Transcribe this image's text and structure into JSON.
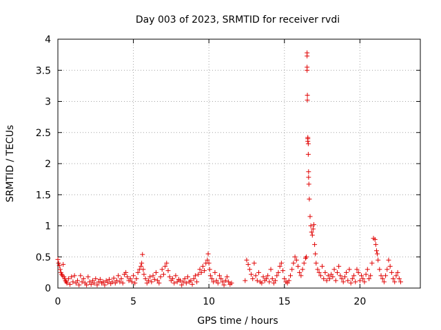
{
  "chart_data": {
    "type": "scatter",
    "title": "Day 003 of 2023, SRMTID for receiver rvdi",
    "xlabel": "GPS time / hours",
    "ylabel": "SRMTID / TECUs",
    "xlim": [
      0,
      24
    ],
    "ylim": [
      0,
      4
    ],
    "xticks": [
      0,
      5,
      10,
      15,
      20
    ],
    "xtick_labels": [
      "0",
      "5",
      "10",
      "15",
      "20"
    ],
    "yticks": [
      0,
      0.5,
      1,
      1.5,
      2,
      2.5,
      3,
      3.5,
      4
    ],
    "ytick_labels": [
      "0",
      "0.5",
      "1",
      "1.5",
      "2",
      "2.5",
      "3",
      "3.5",
      "4"
    ],
    "grid": true,
    "marker": "+",
    "color": "#e00000",
    "series": [
      {
        "name": "SRMTID",
        "x": [
          0.0,
          0.05,
          0.1,
          0.15,
          0.2,
          0.25,
          0.3,
          0.35,
          0.4,
          0.45,
          0.5,
          0.55,
          0.6,
          0.7,
          0.8,
          0.9,
          1.0,
          1.1,
          1.2,
          1.3,
          1.4,
          1.5,
          1.6,
          1.7,
          1.8,
          1.9,
          2.0,
          2.1,
          2.2,
          2.3,
          2.4,
          2.5,
          2.6,
          2.7,
          2.8,
          2.9,
          3.0,
          3.1,
          3.2,
          3.3,
          3.4,
          3.5,
          3.6,
          3.7,
          3.8,
          3.9,
          4.0,
          4.1,
          4.2,
          4.3,
          4.4,
          4.5,
          4.6,
          4.7,
          4.8,
          4.9,
          5.0,
          5.1,
          5.2,
          5.3,
          5.4,
          5.5,
          5.55,
          5.6,
          5.65,
          5.7,
          5.8,
          5.9,
          6.0,
          6.1,
          6.2,
          6.3,
          6.4,
          6.5,
          6.6,
          6.7,
          6.8,
          6.9,
          7.0,
          7.1,
          7.2,
          7.3,
          7.4,
          7.5,
          7.6,
          7.7,
          7.8,
          7.9,
          8.0,
          8.1,
          8.2,
          8.3,
          8.4,
          8.5,
          8.6,
          8.7,
          8.8,
          8.9,
          9.0,
          9.1,
          9.2,
          9.3,
          9.4,
          9.5,
          9.6,
          9.7,
          9.8,
          9.9,
          9.95,
          10.0,
          10.05,
          10.1,
          10.2,
          10.3,
          10.4,
          10.5,
          10.6,
          10.7,
          10.8,
          10.9,
          11.0,
          11.1,
          11.2,
          11.3,
          11.4,
          11.5,
          12.4,
          12.5,
          12.6,
          12.7,
          12.8,
          12.9,
          13.0,
          13.1,
          13.2,
          13.3,
          13.4,
          13.5,
          13.6,
          13.7,
          13.8,
          13.9,
          14.0,
          14.1,
          14.2,
          14.3,
          14.4,
          14.5,
          14.6,
          14.7,
          14.8,
          14.9,
          15.0,
          15.1,
          15.2,
          15.3,
          15.4,
          15.5,
          15.6,
          15.7,
          15.8,
          15.9,
          16.0,
          16.1,
          16.2,
          16.3,
          16.4,
          16.45,
          16.5,
          16.5,
          16.5,
          16.5,
          16.52,
          16.52,
          16.55,
          16.55,
          16.55,
          16.58,
          16.58,
          16.6,
          16.6,
          16.62,
          16.65,
          16.7,
          16.75,
          16.8,
          16.85,
          16.9,
          16.95,
          17.0,
          17.05,
          17.1,
          17.2,
          17.3,
          17.4,
          17.5,
          17.6,
          17.7,
          17.8,
          17.9,
          18.0,
          18.1,
          18.2,
          18.3,
          18.4,
          18.5,
          18.6,
          18.7,
          18.8,
          18.9,
          19.0,
          19.1,
          19.2,
          19.3,
          19.4,
          19.5,
          19.6,
          19.7,
          19.8,
          19.9,
          20.0,
          20.1,
          20.2,
          20.3,
          20.4,
          20.5,
          20.6,
          20.7,
          20.8,
          20.9,
          21.0,
          21.05,
          21.1,
          21.15,
          21.2,
          21.3,
          21.4,
          21.5,
          21.6,
          21.7,
          21.8,
          21.9,
          22.0,
          22.1,
          22.2,
          22.3,
          22.4,
          22.5,
          22.6,
          22.7
        ],
        "y": [
          0.46,
          0.4,
          0.36,
          0.3,
          0.25,
          0.22,
          0.2,
          0.38,
          0.18,
          0.15,
          0.12,
          0.1,
          0.08,
          0.15,
          0.06,
          0.18,
          0.1,
          0.2,
          0.08,
          0.12,
          0.05,
          0.2,
          0.1,
          0.15,
          0.08,
          0.05,
          0.18,
          0.1,
          0.06,
          0.12,
          0.08,
          0.15,
          0.05,
          0.1,
          0.14,
          0.08,
          0.1,
          0.05,
          0.12,
          0.09,
          0.14,
          0.07,
          0.1,
          0.16,
          0.08,
          0.12,
          0.2,
          0.1,
          0.15,
          0.08,
          0.22,
          0.25,
          0.18,
          0.12,
          0.15,
          0.1,
          0.2,
          0.08,
          0.15,
          0.25,
          0.3,
          0.35,
          0.4,
          0.54,
          0.3,
          0.22,
          0.15,
          0.08,
          0.12,
          0.18,
          0.1,
          0.2,
          0.14,
          0.25,
          0.12,
          0.08,
          0.18,
          0.3,
          0.22,
          0.35,
          0.4,
          0.28,
          0.18,
          0.12,
          0.15,
          0.08,
          0.2,
          0.1,
          0.14,
          0.12,
          0.05,
          0.1,
          0.15,
          0.08,
          0.18,
          0.1,
          0.12,
          0.06,
          0.15,
          0.2,
          0.1,
          0.22,
          0.3,
          0.25,
          0.35,
          0.28,
          0.4,
          0.45,
          0.55,
          0.4,
          0.3,
          0.2,
          0.15,
          0.1,
          0.25,
          0.12,
          0.08,
          0.2,
          0.15,
          0.1,
          0.05,
          0.12,
          0.18,
          0.1,
          0.06,
          0.08,
          0.12,
          0.45,
          0.38,
          0.3,
          0.22,
          0.15,
          0.4,
          0.2,
          0.12,
          0.25,
          0.1,
          0.08,
          0.18,
          0.12,
          0.15,
          0.2,
          0.1,
          0.3,
          0.15,
          0.08,
          0.12,
          0.2,
          0.25,
          0.35,
          0.4,
          0.28,
          0.15,
          0.1,
          0.08,
          0.12,
          0.2,
          0.3,
          0.4,
          0.5,
          0.45,
          0.35,
          0.25,
          0.2,
          0.3,
          0.4,
          0.48,
          0.5,
          3.78,
          3.73,
          3.55,
          3.5,
          3.1,
          3.02,
          2.4,
          2.42,
          2.36,
          2.32,
          2.15,
          1.87,
          1.78,
          1.67,
          1.43,
          1.15,
          1.0,
          0.9,
          0.85,
          0.95,
          1.02,
          0.7,
          0.55,
          0.4,
          0.3,
          0.25,
          0.2,
          0.35,
          0.15,
          0.25,
          0.12,
          0.2,
          0.15,
          0.22,
          0.18,
          0.3,
          0.12,
          0.25,
          0.35,
          0.2,
          0.15,
          0.1,
          0.18,
          0.25,
          0.12,
          0.3,
          0.08,
          0.15,
          0.2,
          0.1,
          0.3,
          0.25,
          0.12,
          0.2,
          0.15,
          0.1,
          0.22,
          0.3,
          0.15,
          0.2,
          0.4,
          0.8,
          0.78,
          0.7,
          0.6,
          0.55,
          0.45,
          0.3,
          0.2,
          0.15,
          0.1,
          0.2,
          0.3,
          0.45,
          0.35,
          0.25,
          0.15,
          0.1,
          0.2,
          0.25,
          0.15,
          0.1
        ]
      }
    ]
  }
}
